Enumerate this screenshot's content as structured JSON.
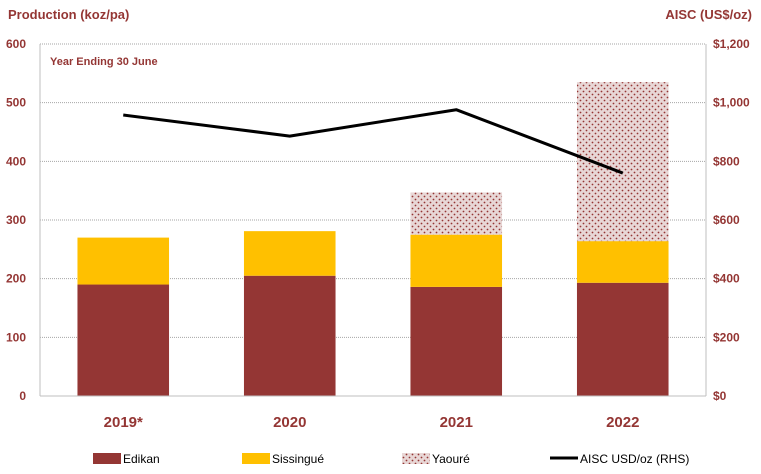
{
  "chart_data": {
    "type": "bar",
    "stacked": true,
    "annotation": "Year Ending 30 June",
    "left_axis_title": "Production (koz/pa)",
    "right_axis_title": "AISC (US$/oz)",
    "categories": [
      "2019*",
      "2020",
      "2021",
      "2022"
    ],
    "series": [
      {
        "name": "Edikan",
        "values": [
          190,
          205,
          186,
          193
        ],
        "color": "#943634",
        "pattern": "solid"
      },
      {
        "name": "Sissingué",
        "values": [
          80,
          76,
          89,
          71
        ],
        "color": "#FFC000",
        "pattern": "solid"
      },
      {
        "name": "Yaouré",
        "values": [
          0,
          0,
          72,
          271
        ],
        "color": "#943634",
        "pattern": "dots"
      }
    ],
    "line_series": {
      "name": "AISC USD/oz (RHS)",
      "values": [
        958,
        886,
        976,
        760
      ],
      "color": "#000000",
      "axis": "right"
    },
    "ylim": [
      0,
      600
    ],
    "yticks": [
      "0",
      "100",
      "200",
      "300",
      "400",
      "500",
      "600"
    ],
    "ylim_right": [
      0,
      1200
    ],
    "yticks_right": [
      "$0",
      "$200",
      "$400",
      "$600",
      "$800",
      "$1,000",
      "$1,200"
    ],
    "grid": true,
    "legend_position": "bottom",
    "text_color": "#943634"
  }
}
